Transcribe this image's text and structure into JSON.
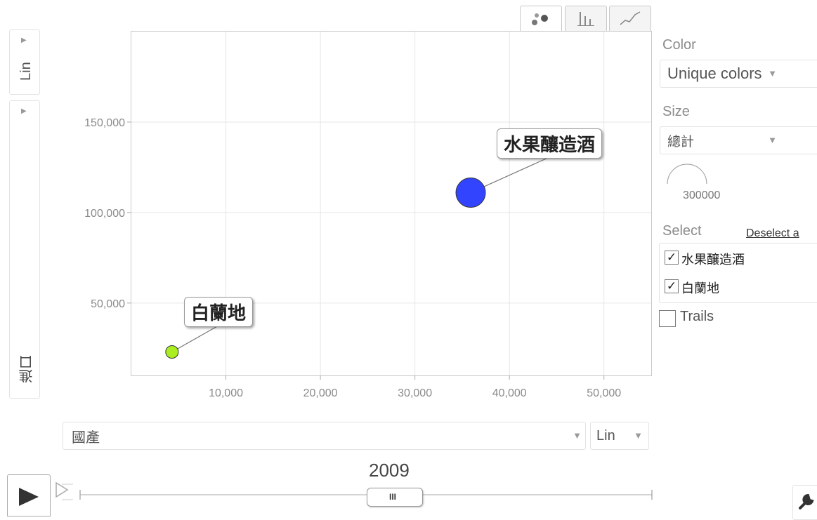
{
  "colors": {
    "series_fruit_wine": "#3344ff",
    "series_brandy": "#aaee22",
    "grid": "#e6e6e6",
    "axis_text": "#8a8a8a"
  },
  "y_axis_control": {
    "scale_label": "Lin",
    "metric_label": "進口"
  },
  "x_axis_control": {
    "metric_label": "國產",
    "scale_label": "Lin"
  },
  "tabs": [
    {
      "icon": "bubble-chart-icon",
      "active": true
    },
    {
      "icon": "bar-chart-icon",
      "active": false
    },
    {
      "icon": "line-chart-icon",
      "active": false
    }
  ],
  "side_panel": {
    "color_label": "Color",
    "color_value": "Unique colors",
    "size_label": "Size",
    "size_value": "總計",
    "size_legend_value": "300000",
    "select_label": "Select",
    "deselect_link": "Deselect a",
    "items": [
      {
        "label": "水果釀造酒",
        "checked": true
      },
      {
        "label": "白蘭地",
        "checked": true
      }
    ],
    "trails_label": "Trails",
    "trails_checked": false
  },
  "time": {
    "current": "2009",
    "thumb_label": "III"
  },
  "chart_data": {
    "type": "scatter",
    "xlim": [
      0,
      55000
    ],
    "ylim": [
      10000,
      200000
    ],
    "xticks": [
      10000,
      20000,
      30000,
      40000,
      50000
    ],
    "yticks": [
      50000,
      100000,
      150000
    ],
    "xtick_labels": [
      "10,000",
      "20,000",
      "30,000",
      "40,000",
      "50,000"
    ],
    "ytick_labels": [
      "50,000",
      "100,000",
      "150,000"
    ],
    "xlabel": "國產",
    "ylabel": "進口",
    "year": "2009",
    "grid": true,
    "series": [
      {
        "name": "水果釀造酒",
        "x": 35900,
        "y": 111000,
        "size_rank": "large",
        "color": "#3344ff"
      },
      {
        "name": "白蘭地",
        "x": 4300,
        "y": 23000,
        "size_rank": "small",
        "color": "#aaee22"
      }
    ]
  }
}
